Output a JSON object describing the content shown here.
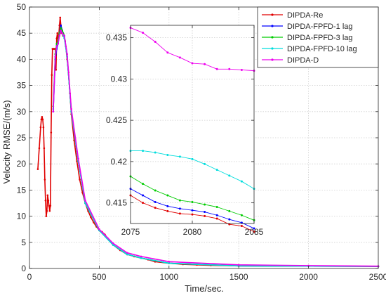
{
  "chart_data": [
    {
      "type": "line",
      "xlabel": "Time/sec.",
      "ylabel": "Velocity RMSE/(m/s)",
      "xlim": [
        0,
        2500
      ],
      "ylim": [
        0,
        50
      ],
      "xticks": [
        0,
        500,
        1000,
        1500,
        2000,
        2500
      ],
      "yticks": [
        0,
        5,
        10,
        15,
        20,
        25,
        30,
        35,
        40,
        45,
        50
      ],
      "grid": true,
      "legend_position": "top-right",
      "series": [
        {
          "name": "DIPDA-Re",
          "color": "#e00000",
          "x": [
            60,
            70,
            80,
            85,
            90,
            95,
            100,
            105,
            110,
            115,
            120,
            125,
            130,
            135,
            140,
            145,
            150,
            155,
            160,
            165,
            170,
            175,
            180,
            185,
            190,
            195,
            200,
            205,
            210,
            215,
            220,
            225,
            230,
            235,
            240,
            245,
            250,
            255,
            260,
            270,
            280,
            290,
            300,
            320,
            340,
            360,
            380,
            400,
            420,
            440,
            460,
            480,
            500,
            520,
            540,
            560,
            580,
            600,
            650,
            700,
            750,
            800,
            850,
            900,
            1000,
            1100,
            1200,
            1300,
            1500,
            2000,
            2500
          ],
          "y": [
            19,
            23,
            27,
            28.5,
            29,
            28.5,
            27,
            23,
            17,
            13,
            10,
            11,
            14,
            13,
            12,
            11,
            12,
            26,
            37,
            42,
            42,
            42,
            42,
            42,
            38,
            44,
            45,
            43.5,
            44.5,
            46.5,
            48,
            46.5,
            45,
            45,
            44.5,
            44.5,
            44,
            43.5,
            42.5,
            40,
            37.5,
            33.5,
            29.5,
            24.5,
            20.5,
            17,
            14.5,
            12.5,
            11,
            9.8,
            8.8,
            8,
            7.3,
            7,
            6.5,
            5.8,
            5.2,
            4.5,
            3.5,
            2.7,
            2.3,
            2,
            1.7,
            1.3,
            1,
            0.8,
            0.7,
            0.6,
            0.5,
            0.45,
            0.41
          ]
        },
        {
          "name": "DIPDA-FPFD-1 lag",
          "color": "#0000ff",
          "x": [
            170,
            185,
            195,
            205,
            215,
            225,
            235,
            250,
            270,
            300,
            350,
            400,
            500,
            600,
            700,
            800,
            1000,
            1500,
            2000,
            2500
          ],
          "y": [
            30,
            40,
            42,
            43,
            45,
            46.5,
            45.5,
            44.5,
            40.5,
            30,
            20.5,
            12.5,
            7.3,
            4.5,
            2.7,
            2,
            1,
            0.5,
            0.45,
            0.41
          ]
        },
        {
          "name": "DIPDA-FPFD-3 lag",
          "color": "#00cc00",
          "x": [
            170,
            185,
            195,
            205,
            215,
            225,
            235,
            250,
            270,
            300,
            350,
            400,
            500,
            600,
            700,
            800,
            1000,
            1500,
            2000,
            2500
          ],
          "y": [
            31,
            41,
            43,
            43.5,
            45,
            46,
            45.5,
            44.5,
            40.5,
            30,
            20.5,
            12.5,
            7.3,
            4.5,
            2.7,
            2,
            1,
            0.5,
            0.45,
            0.42
          ]
        },
        {
          "name": "DIPDA-FPFD-10 lag",
          "color": "#00dddd",
          "x": [
            170,
            185,
            195,
            205,
            215,
            225,
            235,
            250,
            270,
            300,
            350,
            400,
            500,
            600,
            700,
            800,
            1000,
            1500,
            2000,
            2500
          ],
          "y": [
            30.5,
            40.5,
            42.5,
            43,
            44.5,
            45.5,
            45,
            44,
            40.5,
            30,
            20.5,
            12.5,
            7.3,
            4.5,
            2.7,
            2,
            1,
            0.5,
            0.45,
            0.42
          ]
        },
        {
          "name": "DIPDA-D",
          "color": "#ee00ee",
          "x": [
            170,
            185,
            195,
            205,
            215,
            225,
            235,
            250,
            270,
            300,
            350,
            400,
            500,
            600,
            700,
            800,
            1000,
            1500,
            2000,
            2500
          ],
          "y": [
            30,
            40.5,
            42.5,
            43,
            44.5,
            45.5,
            45,
            44.5,
            41,
            30.5,
            21,
            13,
            7.5,
            4.8,
            3,
            2.3,
            1.3,
            0.7,
            0.55,
            0.44
          ]
        }
      ]
    },
    {
      "type": "line",
      "xlim": [
        2075,
        2085
      ],
      "ylim": [
        0.4125,
        0.4365
      ],
      "xticks": [
        2075,
        2080,
        2085
      ],
      "yticks": [
        0.415,
        0.42,
        0.425,
        0.43,
        0.435
      ],
      "grid": true,
      "series": [
        {
          "name": "DIPDA-Re",
          "color": "#e00000",
          "x": [
            2075,
            2076,
            2077,
            2078,
            2079,
            2080,
            2081,
            2082,
            2083,
            2084,
            2085
          ],
          "y": [
            0.4159,
            0.415,
            0.4144,
            0.414,
            0.4137,
            0.4136,
            0.4134,
            0.4131,
            0.4124,
            0.4122,
            0.4115
          ]
        },
        {
          "name": "DIPDA-FPFD-1 lag",
          "color": "#0000ff",
          "x": [
            2075,
            2076,
            2077,
            2078,
            2079,
            2080,
            2081,
            2082,
            2083,
            2084,
            2085
          ],
          "y": [
            0.4167,
            0.4159,
            0.4151,
            0.4146,
            0.4143,
            0.4141,
            0.4139,
            0.4135,
            0.413,
            0.4126,
            0.4119
          ]
        },
        {
          "name": "DIPDA-FPFD-3 lag",
          "color": "#00cc00",
          "x": [
            2075,
            2076,
            2077,
            2078,
            2079,
            2080,
            2081,
            2082,
            2083,
            2084,
            2085
          ],
          "y": [
            0.4182,
            0.4173,
            0.4165,
            0.4159,
            0.4153,
            0.4151,
            0.4148,
            0.4145,
            0.414,
            0.4135,
            0.4129
          ]
        },
        {
          "name": "DIPDA-FPFD-10 lag",
          "color": "#00dddd",
          "x": [
            2075,
            2076,
            2077,
            2078,
            2079,
            2080,
            2081,
            2082,
            2083,
            2084,
            2085
          ],
          "y": [
            0.4213,
            0.4213,
            0.4211,
            0.4208,
            0.4206,
            0.4203,
            0.4197,
            0.419,
            0.4183,
            0.4176,
            0.4167
          ]
        },
        {
          "name": "DIPDA-D",
          "color": "#ee00ee",
          "x": [
            2075,
            2076,
            2077,
            2078,
            2079,
            2080,
            2081,
            2082,
            2083,
            2084,
            2085
          ],
          "y": [
            0.4362,
            0.4356,
            0.4345,
            0.4332,
            0.4326,
            0.4319,
            0.4318,
            0.4312,
            0.4312,
            0.4311,
            0.431
          ]
        }
      ]
    }
  ]
}
